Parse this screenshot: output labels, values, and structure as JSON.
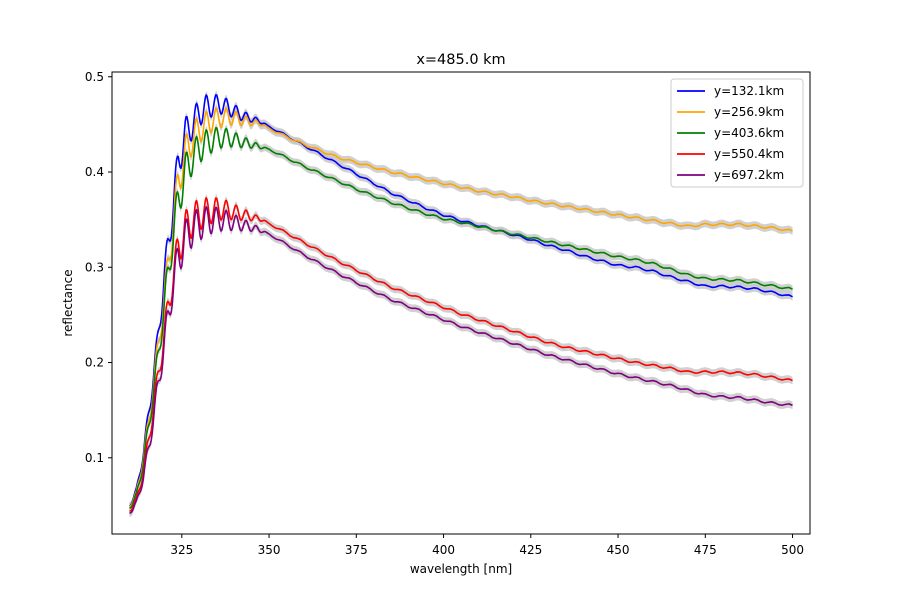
{
  "chart_data": {
    "type": "line",
    "title": "x=485.0 km",
    "xlabel": "wavelength [nm]",
    "ylabel": "reflectance",
    "xlim": [
      305,
      505
    ],
    "ylim": [
      0.02,
      0.505
    ],
    "xticks": [
      325,
      350,
      375,
      400,
      425,
      450,
      475,
      500
    ],
    "yticks": [
      0.1,
      0.2,
      0.3,
      0.4,
      0.5
    ],
    "xtick_labels": [
      "325",
      "350",
      "375",
      "400",
      "425",
      "450",
      "475",
      "500"
    ],
    "ytick_labels": [
      "0.1",
      "0.2",
      "0.3",
      "0.4",
      "0.5"
    ],
    "grid": false,
    "legend_position": "upper right",
    "uncertainty_band_color": "#c8c8c8",
    "series": [
      {
        "name": "y=132.1km",
        "color": "#0000ff",
        "x": [
          310,
          312,
          314,
          316,
          318,
          320,
          322,
          324,
          326,
          328,
          330,
          332,
          334,
          336,
          338,
          340,
          342,
          344,
          346,
          348,
          350,
          355,
          360,
          365,
          370,
          375,
          380,
          385,
          390,
          395,
          400,
          405,
          410,
          415,
          420,
          425,
          430,
          435,
          440,
          445,
          450,
          455,
          460,
          465,
          470,
          475,
          480,
          485,
          490,
          495,
          500
        ],
        "y": [
          0.05,
          0.065,
          0.105,
          0.16,
          0.22,
          0.29,
          0.35,
          0.41,
          0.44,
          0.45,
          0.462,
          0.468,
          0.47,
          0.471,
          0.468,
          0.464,
          0.46,
          0.457,
          0.455,
          0.452,
          0.448,
          0.438,
          0.428,
          0.418,
          0.408,
          0.398,
          0.388,
          0.378,
          0.37,
          0.362,
          0.355,
          0.349,
          0.344,
          0.339,
          0.334,
          0.329,
          0.323,
          0.318,
          0.312,
          0.307,
          0.302,
          0.3,
          0.296,
          0.29,
          0.285,
          0.28,
          0.28,
          0.279,
          0.277,
          0.273,
          0.269
        ]
      },
      {
        "name": "y=256.9km",
        "color": "#ffa500",
        "x": [
          310,
          312,
          314,
          316,
          318,
          320,
          322,
          324,
          326,
          328,
          330,
          332,
          334,
          336,
          338,
          340,
          342,
          344,
          346,
          348,
          350,
          355,
          360,
          365,
          370,
          375,
          380,
          385,
          390,
          395,
          400,
          405,
          410,
          415,
          420,
          425,
          430,
          435,
          440,
          445,
          450,
          455,
          460,
          465,
          470,
          475,
          480,
          485,
          490,
          495,
          500
        ],
        "y": [
          0.05,
          0.062,
          0.1,
          0.15,
          0.21,
          0.27,
          0.33,
          0.39,
          0.42,
          0.435,
          0.445,
          0.45,
          0.455,
          0.457,
          0.458,
          0.457,
          0.455,
          0.453,
          0.452,
          0.45,
          0.446,
          0.437,
          0.429,
          0.422,
          0.415,
          0.41,
          0.405,
          0.4,
          0.396,
          0.392,
          0.388,
          0.384,
          0.38,
          0.377,
          0.374,
          0.37,
          0.367,
          0.364,
          0.361,
          0.358,
          0.355,
          0.352,
          0.349,
          0.346,
          0.343,
          0.345,
          0.345,
          0.345,
          0.343,
          0.341,
          0.338
        ]
      },
      {
        "name": "y=403.6km",
        "color": "#008000",
        "x": [
          310,
          312,
          314,
          316,
          318,
          320,
          322,
          324,
          326,
          328,
          330,
          332,
          334,
          336,
          338,
          340,
          342,
          344,
          346,
          348,
          350,
          355,
          360,
          365,
          370,
          375,
          380,
          385,
          390,
          395,
          400,
          405,
          410,
          415,
          420,
          425,
          430,
          435,
          440,
          445,
          450,
          455,
          460,
          465,
          470,
          475,
          480,
          485,
          490,
          495,
          500
        ],
        "y": [
          0.048,
          0.06,
          0.095,
          0.145,
          0.2,
          0.26,
          0.32,
          0.37,
          0.4,
          0.415,
          0.425,
          0.43,
          0.434,
          0.436,
          0.436,
          0.434,
          0.432,
          0.43,
          0.428,
          0.426,
          0.424,
          0.415,
          0.406,
          0.398,
          0.39,
          0.382,
          0.375,
          0.368,
          0.362,
          0.356,
          0.351,
          0.347,
          0.343,
          0.339,
          0.335,
          0.331,
          0.327,
          0.323,
          0.319,
          0.315,
          0.311,
          0.308,
          0.304,
          0.298,
          0.292,
          0.288,
          0.287,
          0.286,
          0.283,
          0.28,
          0.277
        ]
      },
      {
        "name": "y=550.4km",
        "color": "#ff0000",
        "x": [
          310,
          312,
          314,
          316,
          318,
          320,
          322,
          324,
          326,
          328,
          330,
          332,
          334,
          336,
          338,
          340,
          342,
          344,
          346,
          348,
          350,
          355,
          360,
          365,
          370,
          375,
          380,
          385,
          390,
          395,
          400,
          405,
          410,
          415,
          420,
          425,
          430,
          435,
          440,
          445,
          450,
          455,
          460,
          465,
          470,
          475,
          480,
          485,
          490,
          495,
          500
        ],
        "y": [
          0.045,
          0.055,
          0.085,
          0.13,
          0.18,
          0.23,
          0.28,
          0.32,
          0.34,
          0.35,
          0.355,
          0.358,
          0.36,
          0.361,
          0.36,
          0.358,
          0.356,
          0.354,
          0.352,
          0.35,
          0.346,
          0.336,
          0.326,
          0.316,
          0.306,
          0.297,
          0.288,
          0.279,
          0.272,
          0.265,
          0.258,
          0.251,
          0.245,
          0.239,
          0.233,
          0.227,
          0.221,
          0.216,
          0.212,
          0.208,
          0.204,
          0.2,
          0.197,
          0.194,
          0.19,
          0.19,
          0.19,
          0.189,
          0.187,
          0.184,
          0.181
        ]
      },
      {
        "name": "y=697.2km",
        "color": "#800080",
        "x": [
          310,
          312,
          314,
          316,
          318,
          320,
          322,
          324,
          326,
          328,
          330,
          332,
          334,
          336,
          338,
          340,
          342,
          344,
          346,
          348,
          350,
          355,
          360,
          365,
          370,
          375,
          380,
          385,
          390,
          395,
          400,
          405,
          410,
          415,
          420,
          425,
          430,
          435,
          440,
          445,
          450,
          455,
          460,
          465,
          470,
          475,
          480,
          485,
          490,
          495,
          500
        ],
        "y": [
          0.043,
          0.052,
          0.08,
          0.12,
          0.17,
          0.22,
          0.27,
          0.31,
          0.33,
          0.34,
          0.345,
          0.348,
          0.35,
          0.35,
          0.349,
          0.347,
          0.345,
          0.343,
          0.341,
          0.338,
          0.335,
          0.324,
          0.313,
          0.303,
          0.293,
          0.284,
          0.275,
          0.266,
          0.259,
          0.252,
          0.245,
          0.238,
          0.232,
          0.226,
          0.22,
          0.214,
          0.208,
          0.203,
          0.198,
          0.193,
          0.188,
          0.184,
          0.18,
          0.176,
          0.171,
          0.166,
          0.164,
          0.163,
          0.16,
          0.157,
          0.155
        ]
      }
    ]
  }
}
